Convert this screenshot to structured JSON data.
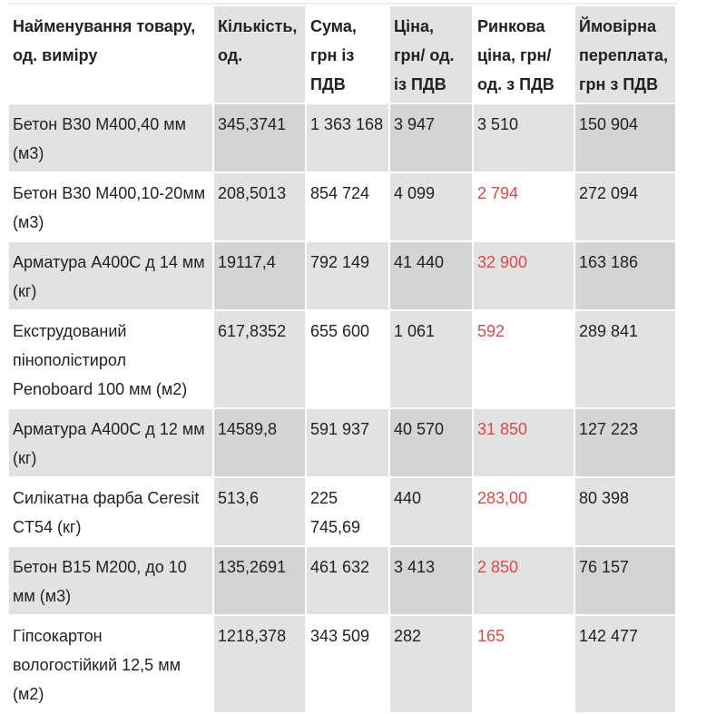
{
  "headers": [
    "Найменування товару, од. виміру",
    "Кількість, од.",
    "Сума, грн із ПДВ",
    "Ціна, грн/ од. із ПДВ",
    "Ринкова ціна, грн/ од. з ПДВ",
    "Ймовірна переплата, грн з ПДВ"
  ],
  "rows": [
    {
      "name": "Бетон В30 М400,40 мм (м3)",
      "qty": "345,3741",
      "sum": "1 363 168",
      "price": "3 947",
      "market": "3 510",
      "over": "150 904",
      "market_red": false
    },
    {
      "name": "Бетон В30 М400,10-20мм (м3)",
      "qty": "208,5013",
      "sum": "854 724",
      "price": "4 099",
      "market": "2 794",
      "over": "272 094",
      "market_red": true
    },
    {
      "name": "Арматура А400С д 14 мм (кг)",
      "qty": "19117,4",
      "sum": "792 149",
      "price": "41 440",
      "market": "32 900",
      "over": "163 186",
      "market_red": true
    },
    {
      "name": "Екструдований пінополістирол Penoboard 100 мм (м2)",
      "qty": "617,8352",
      "sum": "655 600",
      "price": "1 061",
      "market": "592",
      "over": "289 841",
      "market_red": true
    },
    {
      "name": "Арматура А400С д 12 мм (кг)",
      "qty": "14589,8",
      "sum": "591 937",
      "price": "40 570",
      "market": "31 850",
      "over": "127 223",
      "market_red": true
    },
    {
      "name": "Силікатна фарба Ceresit  CT54 (кг)",
      "qty": "513,6",
      "sum": "225 745,69",
      "price": "440",
      "market": "283,00",
      "over": "80 398",
      "market_red": true
    },
    {
      "name": "Бетон В15 М200, до 10 мм (м3)",
      "qty": "135,2691",
      "sum": "461 632",
      "price": "3 413",
      "market": "2 850",
      "over": "76 157",
      "market_red": true
    },
    {
      "name": "Гіпсокартон вологостійкий 12,5 мм (м2)",
      "qty": "1218,378",
      "sum": "343 509",
      "price": "282",
      "market": "165",
      "over": "142 477",
      "market_red": true
    }
  ],
  "colors": {
    "red": "#e04848"
  }
}
